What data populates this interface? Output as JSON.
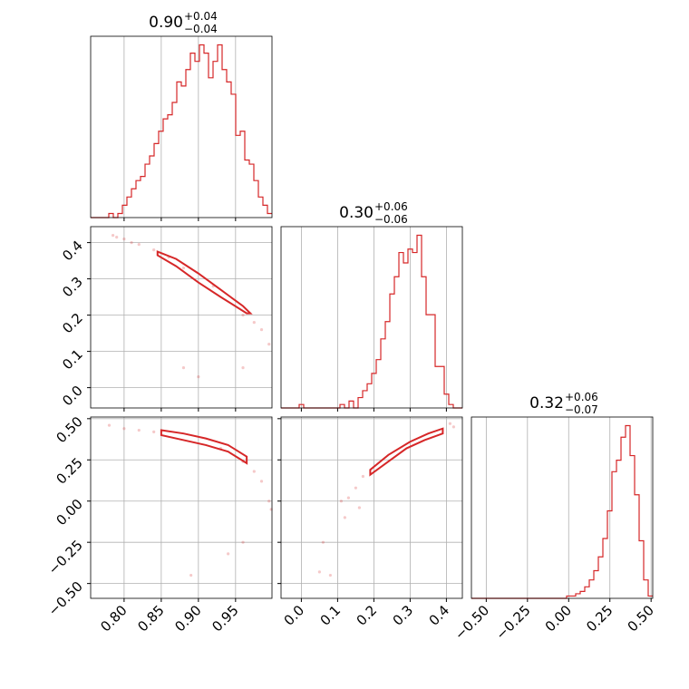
{
  "chart_data": {
    "type": "corner",
    "color": "#d62728",
    "grid": true,
    "parameters": [
      {
        "title": {
          "median": "0.90",
          "plus": "+0.04",
          "minus": "−0.04"
        },
        "lim": [
          0.755,
          0.999
        ],
        "ticks": [
          {
            "value": 0.8,
            "label": "0.80"
          },
          0.85,
          {
            "value": 0.9,
            "label": "0.90"
          },
          0.95
        ],
        "bins": [
          0.755,
          0.7611,
          0.7672,
          0.7733,
          0.7794,
          0.7855,
          0.7916,
          0.7977,
          0.8038,
          0.8099,
          0.816,
          0.8221,
          0.8282,
          0.8343,
          0.8404,
          0.8465,
          0.8526,
          0.8587,
          0.8648,
          0.8709,
          0.877,
          0.8831,
          0.8892,
          0.8953,
          0.9014,
          0.9075,
          0.9136,
          0.9197,
          0.9258,
          0.9319,
          0.938,
          0.9441,
          0.9502,
          0.9563,
          0.9624,
          0.9685,
          0.9746,
          0.9807,
          0.9868,
          0.9929,
          0.999
        ],
        "counts": [
          0,
          0,
          0,
          0,
          1,
          0,
          1,
          3,
          5,
          7,
          9,
          10,
          13,
          15,
          18,
          21,
          24,
          25,
          28,
          33,
          32,
          36,
          40,
          38,
          42,
          40,
          34,
          38,
          42,
          36,
          33,
          30,
          20,
          21,
          14,
          13,
          9,
          5,
          3,
          1
        ]
      },
      {
        "title": {
          "median": "0.30",
          "plus": "+0.06",
          "minus": "−0.06"
        },
        "lim": [
          -0.056,
          0.444
        ],
        "ticks": [
          {
            "value": 0,
            "label": "0.0"
          },
          0.1,
          0.2,
          0.3,
          0.4
        ],
        "bins": [
          -0.056,
          -0.0435,
          -0.031,
          -0.0185,
          -0.006,
          0.0065,
          0.019,
          0.0315,
          0.044,
          0.0565,
          0.069,
          0.0815,
          0.094,
          0.1065,
          0.119,
          0.1315,
          0.144,
          0.1565,
          0.169,
          0.1815,
          0.194,
          0.2065,
          0.219,
          0.2315,
          0.244,
          0.2565,
          0.269,
          0.2815,
          0.294,
          0.3065,
          0.319,
          0.3315,
          0.344,
          0.3565,
          0.369,
          0.3815,
          0.394,
          0.4065,
          0.419,
          0.4315,
          0.444
        ],
        "counts": [
          0,
          0,
          0,
          0,
          1,
          0,
          0,
          0,
          0,
          0,
          0,
          0,
          0,
          1,
          0,
          2,
          0,
          3,
          5,
          7,
          10,
          14,
          20,
          25,
          33,
          38,
          45,
          42,
          46,
          45,
          50,
          38,
          27,
          27,
          12,
          12,
          4,
          1,
          0,
          0
        ]
      },
      {
        "title": {
          "median": "0.32",
          "plus": "+0.06",
          "minus": "−0.07"
        },
        "lim": [
          -0.59,
          0.51
        ],
        "ticks": [
          {
            "value": -0.5,
            "label": "−0.50"
          },
          {
            "value": -0.25,
            "label": "−0.25"
          },
          {
            "value": 0,
            "label": "0.00"
          },
          0.25,
          {
            "value": 0.5,
            "label": "0.50"
          }
        ],
        "bins": [
          -0.59,
          -0.5625,
          -0.535,
          -0.5075,
          -0.48,
          -0.4525,
          -0.425,
          -0.3975,
          -0.37,
          -0.3425,
          -0.315,
          -0.2875,
          -0.26,
          -0.2325,
          -0.205,
          -0.1775,
          -0.15,
          -0.1225,
          -0.095,
          -0.0675,
          -0.04,
          -0.0125,
          0.015,
          0.0425,
          0.07,
          0.0975,
          0.125,
          0.1525,
          0.18,
          0.2075,
          0.235,
          0.2625,
          0.29,
          0.3175,
          0.345,
          0.3725,
          0.4,
          0.4275,
          0.455,
          0.4825,
          0.51
        ],
        "counts": [
          0,
          0,
          0,
          0,
          0,
          0,
          0,
          0,
          0,
          0,
          0,
          0,
          0,
          0,
          0,
          0,
          0,
          0,
          0,
          0,
          0,
          1,
          1,
          2,
          3,
          5,
          8,
          12,
          18,
          26,
          38,
          55,
          60,
          70,
          75,
          62,
          45,
          25,
          8,
          1
        ]
      }
    ],
    "pairs": [
      {
        "samples": {
          "x": [
            0.785,
            0.79,
            0.8,
            0.81,
            0.82,
            0.84,
            0.86,
            0.88,
            0.92,
            0.96,
            0.975,
            0.985,
            0.995,
            0.88,
            0.9,
            0.96
          ],
          "y": [
            0.42,
            0.415,
            0.41,
            0.4,
            0.395,
            0.38,
            0.36,
            0.33,
            0.28,
            0.2,
            0.18,
            0.16,
            0.12,
            0.055,
            0.03,
            0.055
          ]
        },
        "contour": {
          "x": [
            0.845,
            0.87,
            0.9,
            0.93,
            0.96,
            0.97,
            0.965,
            0.93,
            0.9,
            0.87,
            0.845
          ],
          "y": [
            0.375,
            0.355,
            0.315,
            0.27,
            0.225,
            0.205,
            0.205,
            0.25,
            0.29,
            0.335,
            0.365
          ]
        }
      },
      {
        "samples": {
          "x": [
            0.78,
            0.8,
            0.82,
            0.84,
            0.93,
            0.96,
            0.975,
            0.985,
            0.995,
            0.998,
            0.89,
            0.94,
            0.96
          ],
          "y": [
            0.46,
            0.44,
            0.43,
            0.42,
            0.32,
            0.24,
            0.18,
            0.12,
            0.0,
            -0.05,
            -0.45,
            -0.32,
            -0.25
          ]
        },
        "contour": {
          "x": [
            0.85,
            0.88,
            0.91,
            0.94,
            0.965,
            0.965,
            0.94,
            0.91,
            0.88,
            0.85
          ],
          "y": [
            0.43,
            0.41,
            0.38,
            0.34,
            0.27,
            0.23,
            0.3,
            0.34,
            0.37,
            0.4
          ]
        }
      },
      {
        "samples": {
          "x": [
            0.06,
            0.08,
            0.05,
            0.11,
            0.13,
            0.15,
            0.17,
            0.41,
            0.42,
            0.16,
            0.12
          ],
          "y": [
            -0.25,
            -0.45,
            -0.43,
            0.0,
            0.02,
            0.08,
            0.15,
            0.47,
            0.45,
            -0.04,
            -0.1
          ]
        },
        "contour": {
          "x": [
            0.19,
            0.24,
            0.3,
            0.35,
            0.39,
            0.39,
            0.34,
            0.29,
            0.24,
            0.19
          ],
          "y": [
            0.19,
            0.28,
            0.36,
            0.41,
            0.44,
            0.41,
            0.37,
            0.32,
            0.24,
            0.16
          ]
        }
      }
    ]
  }
}
